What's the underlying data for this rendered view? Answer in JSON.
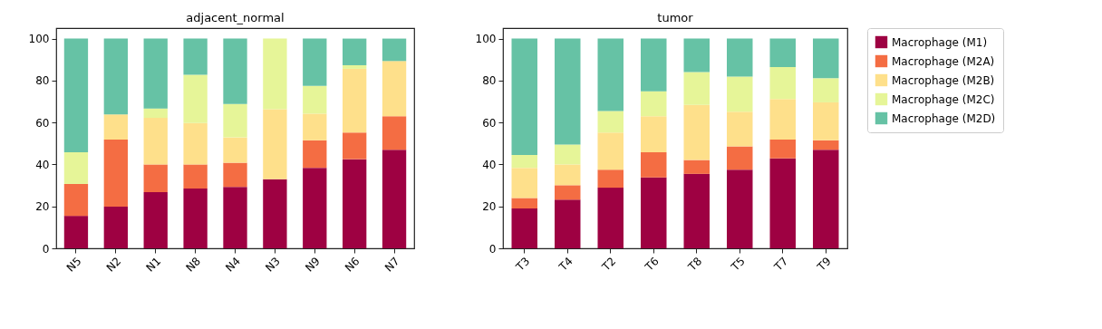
{
  "chart_data": [
    {
      "type": "bar",
      "title": "adjacent_normal",
      "stacked": true,
      "categories": [
        "N5",
        "N2",
        "N1",
        "N8",
        "N4",
        "N3",
        "N9",
        "N6",
        "N7"
      ],
      "ylim": [
        0,
        105
      ],
      "yticks": [
        0,
        20,
        40,
        60,
        80,
        100
      ],
      "grid": false,
      "series": [
        {
          "color": "#9e0142",
          "values": [
            15.5,
            19.9,
            26.8,
            28.5,
            29.3,
            33.0,
            38.4,
            42.5,
            47.0
          ]
        },
        {
          "color": "#f46d43",
          "values": [
            15.2,
            32.0,
            13.2,
            11.5,
            11.5,
            0,
            13.1,
            12.7,
            16.0
          ]
        },
        {
          "color": "#fee08b",
          "values": [
            0,
            11.9,
            22.2,
            19.7,
            12.1,
            33.3,
            12.7,
            30.4,
            26.3
          ]
        },
        {
          "color": "#e6f598",
          "values": [
            15.1,
            0,
            4.5,
            23.0,
            15.9,
            33.7,
            13.2,
            1.7,
            0
          ]
        },
        {
          "color": "#66c2a5",
          "values": [
            54.2,
            36.2,
            33.3,
            17.3,
            31.2,
            0,
            22.6,
            12.7,
            10.7
          ]
        }
      ]
    },
    {
      "type": "bar",
      "title": "tumor",
      "stacked": true,
      "categories": [
        "T3",
        "T4",
        "T2",
        "T6",
        "T8",
        "T5",
        "T7",
        "T9"
      ],
      "ylim": [
        0,
        105
      ],
      "yticks": [
        0,
        20,
        40,
        60,
        80,
        100
      ],
      "grid": false,
      "legend": "right",
      "series": [
        {
          "name": "Macrophage (M1)",
          "color": "#9e0142",
          "values": [
            19.0,
            23.2,
            28.9,
            33.8,
            35.5,
            37.5,
            42.9,
            47.0
          ]
        },
        {
          "name": "Macrophage (M2A)",
          "color": "#f46d43",
          "values": [
            5.0,
            6.9,
            8.6,
            12.0,
            6.6,
            11.1,
            9.0,
            4.5
          ]
        },
        {
          "name": "Macrophage (M2B)",
          "color": "#fee08b",
          "values": [
            14.4,
            9.9,
            17.7,
            17.2,
            26.3,
            16.5,
            19.3,
            18.1
          ]
        },
        {
          "name": "Macrophage (M2C)",
          "color": "#e6f598",
          "values": [
            6.1,
            9.5,
            10.3,
            11.9,
            15.6,
            16.8,
            15.2,
            11.5
          ]
        },
        {
          "name": "Macrophage (M2D)",
          "color": "#66c2a5",
          "values": [
            55.5,
            50.5,
            34.5,
            25.1,
            16.0,
            18.1,
            13.6,
            18.9
          ]
        }
      ]
    }
  ]
}
